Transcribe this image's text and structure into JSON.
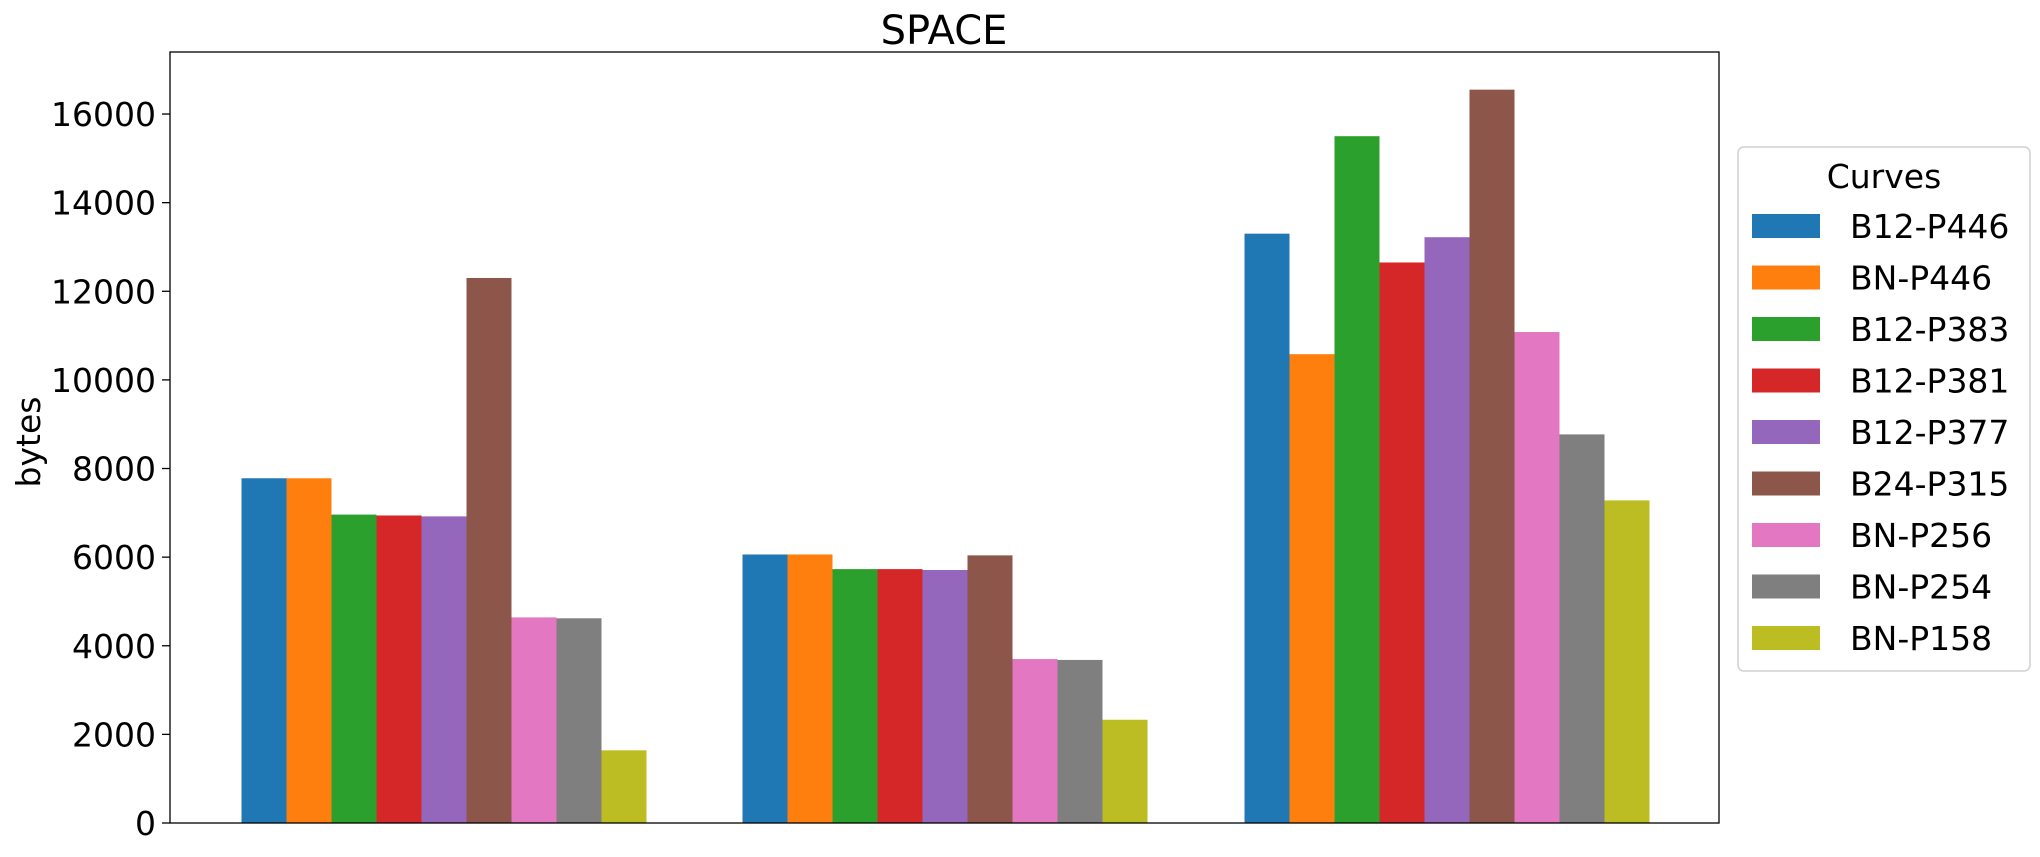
{
  "chart_data": {
    "type": "bar",
    "title": "SPACE",
    "xlabel": "",
    "ylabel": "bytes",
    "ylim": [
      0,
      17400
    ],
    "yticks": [
      0,
      2000,
      4000,
      6000,
      8000,
      10000,
      12000,
      14000,
      16000
    ],
    "grid": false,
    "legend": {
      "title": "Curves",
      "placement": "right-outside"
    },
    "categories": [
      "",
      "",
      ""
    ],
    "series": [
      {
        "name": "B12-P446",
        "color": "#1f77b4",
        "values": [
          7780,
          6060,
          13300
        ]
      },
      {
        "name": "BN-P446",
        "color": "#ff7f0e",
        "values": [
          7780,
          6060,
          10580
        ]
      },
      {
        "name": "B12-P383",
        "color": "#2ca02c",
        "values": [
          6960,
          5730,
          15500
        ]
      },
      {
        "name": "B12-P381",
        "color": "#d62728",
        "values": [
          6940,
          5730,
          12650
        ]
      },
      {
        "name": "B12-P377",
        "color": "#9467bd",
        "values": [
          6920,
          5710,
          13220
        ]
      },
      {
        "name": "B24-P315",
        "color": "#8c564b",
        "values": [
          12300,
          6040,
          16550
        ]
      },
      {
        "name": "BN-P256",
        "color": "#e377c2",
        "values": [
          4640,
          3700,
          11080
        ]
      },
      {
        "name": "BN-P254",
        "color": "#7f7f7f",
        "values": [
          4620,
          3680,
          8770
        ]
      },
      {
        "name": "BN-P158",
        "color": "#bcbd22",
        "values": [
          1640,
          2330,
          7280
        ]
      }
    ]
  }
}
